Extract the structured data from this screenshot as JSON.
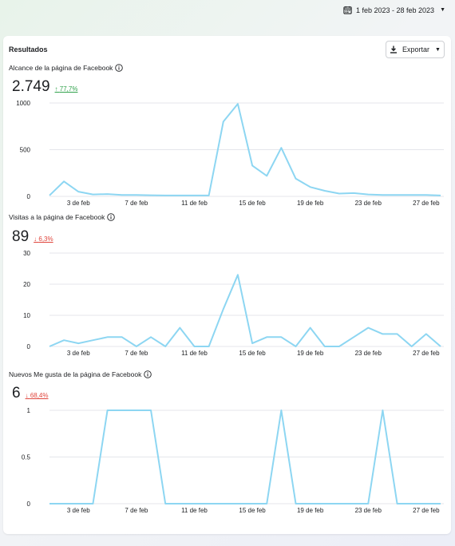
{
  "header": {
    "date_range": "1 feb 2023 - 28 feb 2023"
  },
  "card": {
    "title": "Resultados",
    "export_label": "Exportar"
  },
  "metrics": [
    {
      "label": "Alcance de la página de Facebook",
      "value": "2.749",
      "change": "77,7%",
      "direction": "up"
    },
    {
      "label": "Visitas a la página de Facebook",
      "value": "89",
      "change": "6,3%",
      "direction": "down"
    },
    {
      "label": "Nuevos Me gusta de la página de Facebook",
      "value": "6",
      "change": "68,4%",
      "direction": "down"
    }
  ],
  "colors": {
    "line": "#8dd6f2",
    "grid": "#e4e6eb",
    "up": "#31a24c",
    "down": "#e0463d"
  },
  "chart_data": [
    {
      "type": "line",
      "x": [
        1,
        2,
        3,
        4,
        5,
        6,
        7,
        8,
        9,
        10,
        11,
        12,
        13,
        14,
        15,
        16,
        17,
        18,
        19,
        20,
        21,
        22,
        23,
        24,
        25,
        26,
        27,
        28
      ],
      "x_tick_labels": [
        {
          "x": 3,
          "label": "3 de feb"
        },
        {
          "x": 7,
          "label": "7 de feb"
        },
        {
          "x": 11,
          "label": "11 de feb"
        },
        {
          "x": 15,
          "label": "15 de feb"
        },
        {
          "x": 19,
          "label": "19 de feb"
        },
        {
          "x": 23,
          "label": "23 de feb"
        },
        {
          "x": 27,
          "label": "27 de feb"
        }
      ],
      "y_ticks": [
        "0",
        "500",
        "1000"
      ],
      "ylim": [
        0,
        1000
      ],
      "series": [
        {
          "values": [
            10,
            160,
            50,
            20,
            25,
            15,
            15,
            12,
            10,
            10,
            10,
            10,
            800,
            990,
            330,
            220,
            520,
            190,
            100,
            60,
            30,
            35,
            20,
            15,
            15,
            15,
            15,
            10
          ]
        }
      ]
    },
    {
      "type": "line",
      "x": [
        1,
        2,
        3,
        4,
        5,
        6,
        7,
        8,
        9,
        10,
        11,
        12,
        13,
        14,
        15,
        16,
        17,
        18,
        19,
        20,
        21,
        22,
        23,
        24,
        25,
        26,
        27,
        28
      ],
      "x_tick_labels": [
        {
          "x": 3,
          "label": "3 de feb"
        },
        {
          "x": 7,
          "label": "7 de feb"
        },
        {
          "x": 11,
          "label": "11 de feb"
        },
        {
          "x": 15,
          "label": "15 de feb"
        },
        {
          "x": 19,
          "label": "19 de feb"
        },
        {
          "x": 23,
          "label": "23 de feb"
        },
        {
          "x": 27,
          "label": "27 de feb"
        }
      ],
      "y_ticks": [
        "0",
        "10",
        "20",
        "30"
      ],
      "ylim": [
        0,
        30
      ],
      "series": [
        {
          "values": [
            0,
            2,
            1,
            2,
            3,
            3,
            0,
            3,
            0,
            6,
            0,
            0,
            12,
            23,
            1,
            3,
            3,
            0,
            6,
            0,
            0,
            3,
            6,
            4,
            4,
            0,
            4,
            0
          ]
        }
      ]
    },
    {
      "type": "line",
      "x": [
        1,
        2,
        3,
        4,
        5,
        6,
        7,
        8,
        9,
        10,
        11,
        12,
        13,
        14,
        15,
        16,
        17,
        18,
        19,
        20,
        21,
        22,
        23,
        24,
        25,
        26,
        27,
        28
      ],
      "x_tick_labels": [
        {
          "x": 3,
          "label": "3 de feb"
        },
        {
          "x": 7,
          "label": "7 de feb"
        },
        {
          "x": 11,
          "label": "11 de feb"
        },
        {
          "x": 15,
          "label": "15 de feb"
        },
        {
          "x": 19,
          "label": "19 de feb"
        },
        {
          "x": 23,
          "label": "23 de feb"
        },
        {
          "x": 27,
          "label": "27 de feb"
        }
      ],
      "y_ticks": [
        "0",
        "0.5",
        "1"
      ],
      "ylim": [
        0,
        1
      ],
      "series": [
        {
          "values": [
            0,
            0,
            0,
            0,
            1,
            1,
            1,
            1,
            0,
            0,
            0,
            0,
            0,
            0,
            0,
            0,
            1,
            0,
            0,
            0,
            0,
            0,
            0,
            1,
            0,
            0,
            0,
            0
          ]
        }
      ]
    }
  ]
}
